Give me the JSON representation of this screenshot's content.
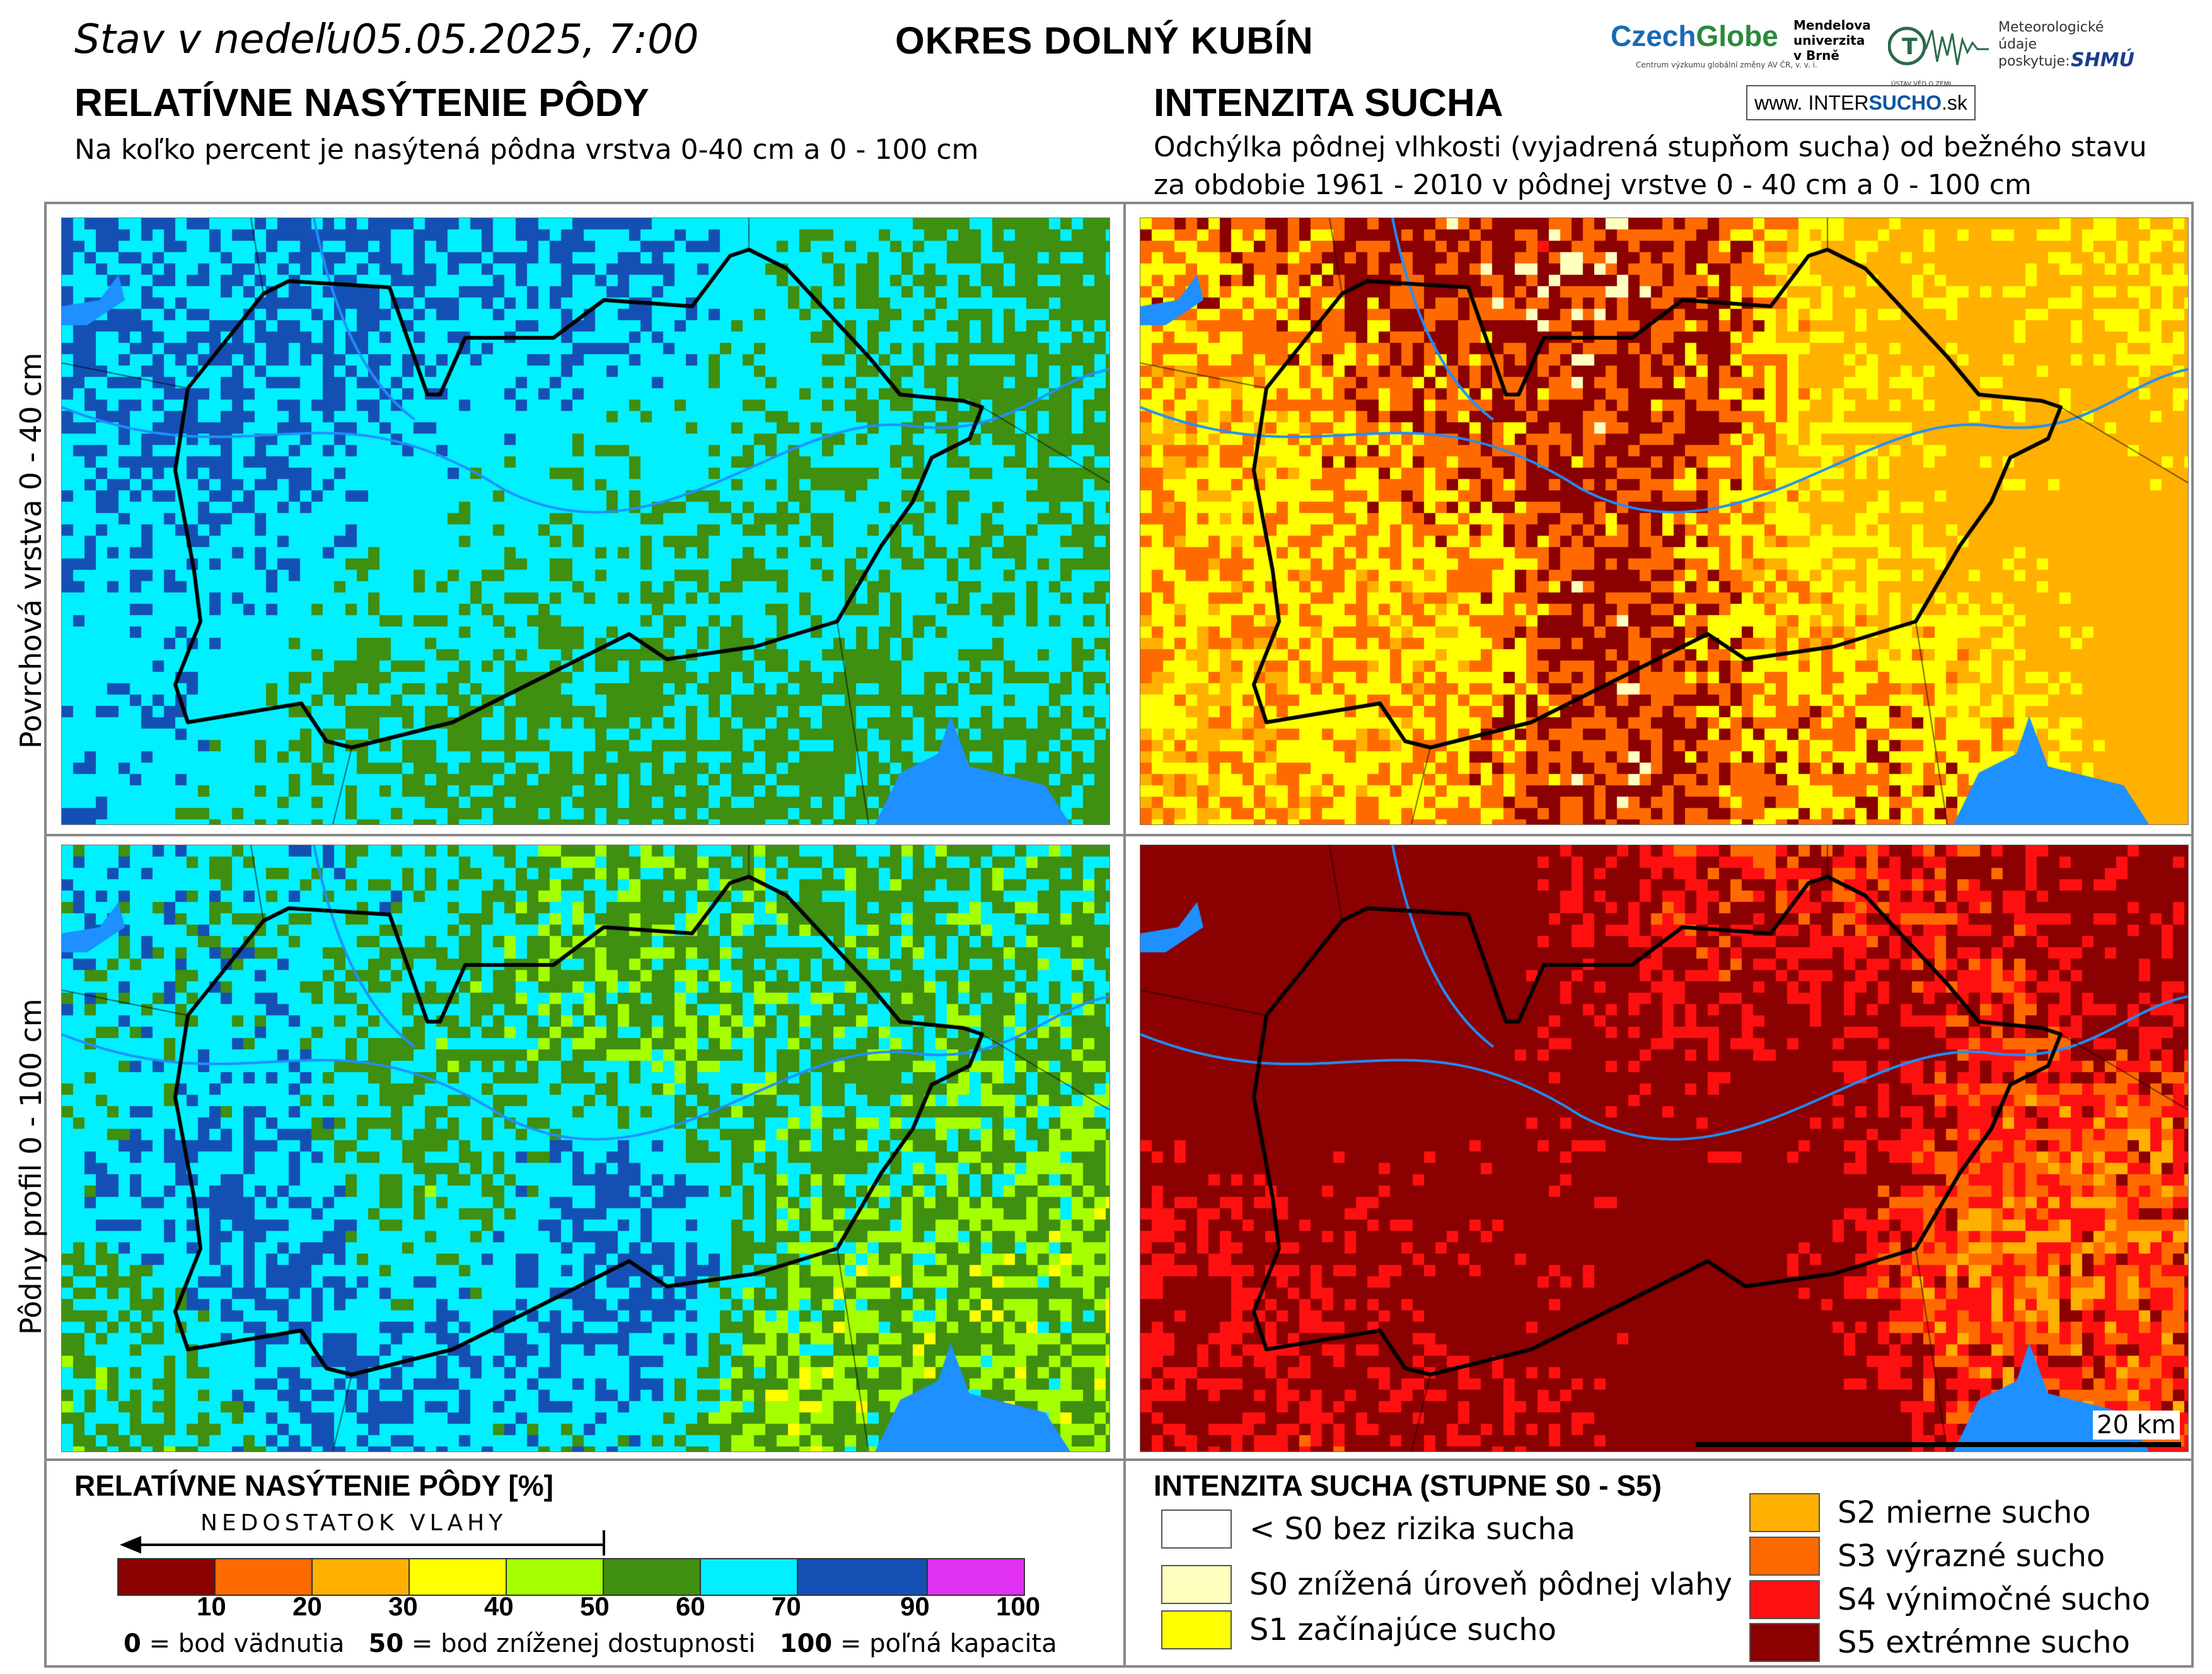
{
  "header": {
    "date_line": "Stav v nedeľu05.05.2025, 7:00",
    "district": "OKRES  DOLNÝ KUBÍN",
    "left_title": "RELATÍVNE NASÝTENIE PÔDY",
    "left_subtitle": "Na koľko percent je nasýtená pôdna vrstva 0-40 cm a 0 - 100 cm",
    "right_title": "INTENZITA SUCHA",
    "right_subtitle_1": "Odchýlka pôdnej vlhkosti (vyjadrená stupňom sucha) od bežného stavu",
    "right_subtitle_2": "za obdobie 1961 - 2010 v pôdnej vrstve 0 - 40 cm a 0 - 100 cm"
  },
  "logos": {
    "czechglobe_a": "Czech",
    "czechglobe_b": "Globe",
    "czechglobe_sub": "Centrum výzkumu globální změny AV ČR, v. v. i.",
    "mendel_1": "Mendelova",
    "mendel_2": "univerzita",
    "mendel_3": "v Brně",
    "uvz_sub": "ÚSTAV VĚD O ZEMI",
    "meteo_1": "Meteorologické",
    "meteo_2": "údaje",
    "meteo_3": "poskytuje:",
    "shmu": "SHMÚ",
    "intersucho_www": "www.",
    "intersucho_a": "INTER",
    "intersucho_b": "SUCHO",
    "intersucho_c": ".sk"
  },
  "rows": {
    "top": "Povrchová vrstva 0 - 40 cm",
    "bottom": "Pôdny profil 0 - 100 cm"
  },
  "scale": {
    "label": "20 km"
  },
  "legend_left": {
    "title": "RELATÍVNE NASÝTENIE PÔDY [%]",
    "arrow_label": "NEDOSTATOK VLAHY",
    "colors": [
      "#8b0000",
      "#ff6a00",
      "#ffb000",
      "#ffff00",
      "#a6ff00",
      "#3f8f10",
      "#00f0ff",
      "#1450b4",
      "#e030f0"
    ],
    "ticks": [
      "10",
      "20",
      "30",
      "40",
      "50",
      "60",
      "70",
      "90",
      "100"
    ],
    "foot_0": "0",
    "foot_0_text": " = bod vädnutia",
    "foot_50": "50",
    "foot_50_text": " = bod zníženej dostupnosti",
    "foot_100": "100",
    "foot_100_text": " = poľná kapacita"
  },
  "legend_right": {
    "title": "INTENZITA SUCHA (STUPNE S0 - S5)",
    "items": [
      {
        "label": "< S0 bez rizika sucha",
        "color": "#ffffff"
      },
      {
        "label": "S0 znížená úroveň pôdnej vlahy",
        "color": "#ffffc0"
      },
      {
        "label": "S1 začínajúce sucho",
        "color": "#ffff00"
      },
      {
        "label": "S2 mierne sucho",
        "color": "#ffb000"
      },
      {
        "label": "S3 výrazné sucho",
        "color": "#ff6a00"
      },
      {
        "label": "S4 výnimočné sucho",
        "color": "#ff1010"
      },
      {
        "label": "S5 extrémne sucho",
        "color": "#8b0000"
      }
    ]
  },
  "maps": {
    "saturation_top": {
      "weights": {
        "#1450b4": 0.28,
        "#00f0ff": 0.32,
        "#3f8f10": 0.3,
        "#a6ff00": 0.1
      }
    },
    "drought_top": {
      "weights": {
        "#ffb000": 0.38,
        "#ffff00": 0.18,
        "#ff6a00": 0.16,
        "#8b0000": 0.18,
        "#ffffc0": 0.05,
        "#ff1010": 0.05
      }
    },
    "saturation_bottom": {
      "weights": {
        "#1450b4": 0.42,
        "#00f0ff": 0.25,
        "#3f8f10": 0.17,
        "#a6ff00": 0.14,
        "#ffff00": 0.02
      }
    },
    "drought_bottom": {
      "weights": {
        "#8b0000": 0.55,
        "#ff1010": 0.14,
        "#ff6a00": 0.12,
        "#ffb000": 0.11,
        "#ffff00": 0.08
      }
    }
  }
}
